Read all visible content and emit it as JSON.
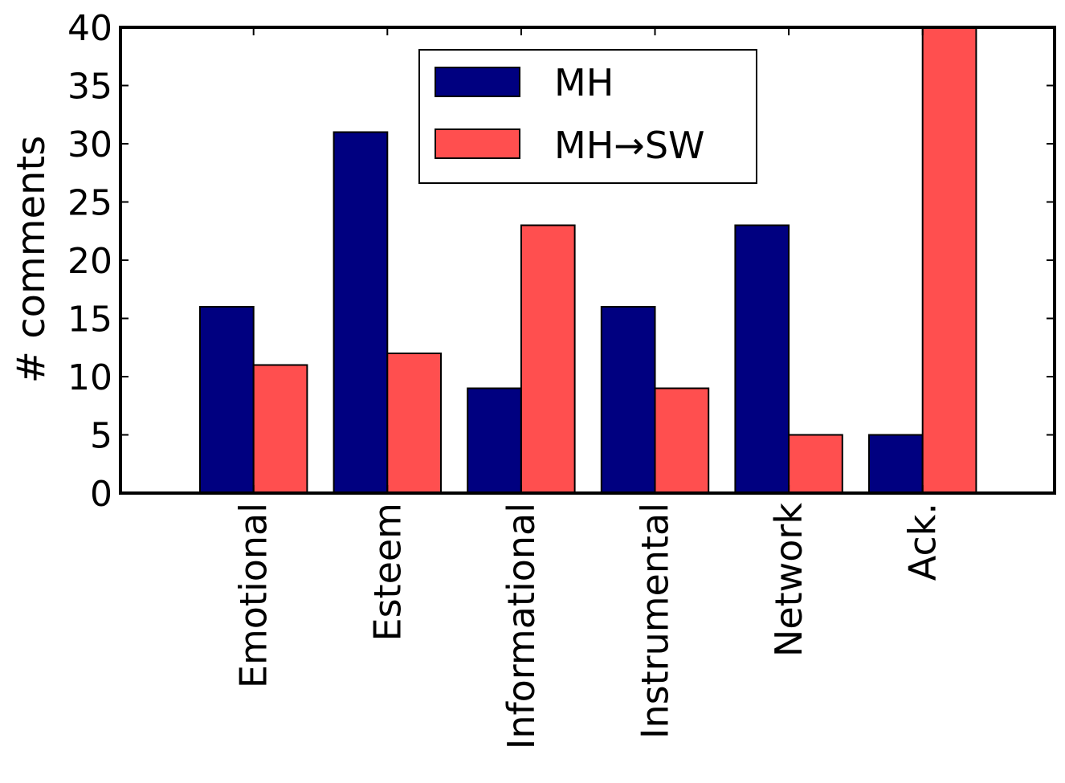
{
  "chart_data": {
    "type": "bar",
    "title": "",
    "xlabel": "",
    "ylabel": "# comments",
    "categories": [
      "Emotional",
      "Esteem",
      "Informational",
      "Instrumental",
      "Network",
      "Ack."
    ],
    "series": [
      {
        "name": "MH",
        "values": [
          16,
          31,
          9,
          16,
          23,
          5
        ],
        "color": "#000080"
      },
      {
        "name": "MH→SW",
        "values": [
          11,
          12,
          23,
          9,
          5,
          40
        ],
        "color": "#ff4f4f"
      }
    ],
    "ylim": [
      0,
      40
    ],
    "yticks": [
      0,
      5,
      10,
      15,
      20,
      25,
      30,
      35,
      40
    ],
    "grid": false,
    "legend_position": "top-center"
  }
}
